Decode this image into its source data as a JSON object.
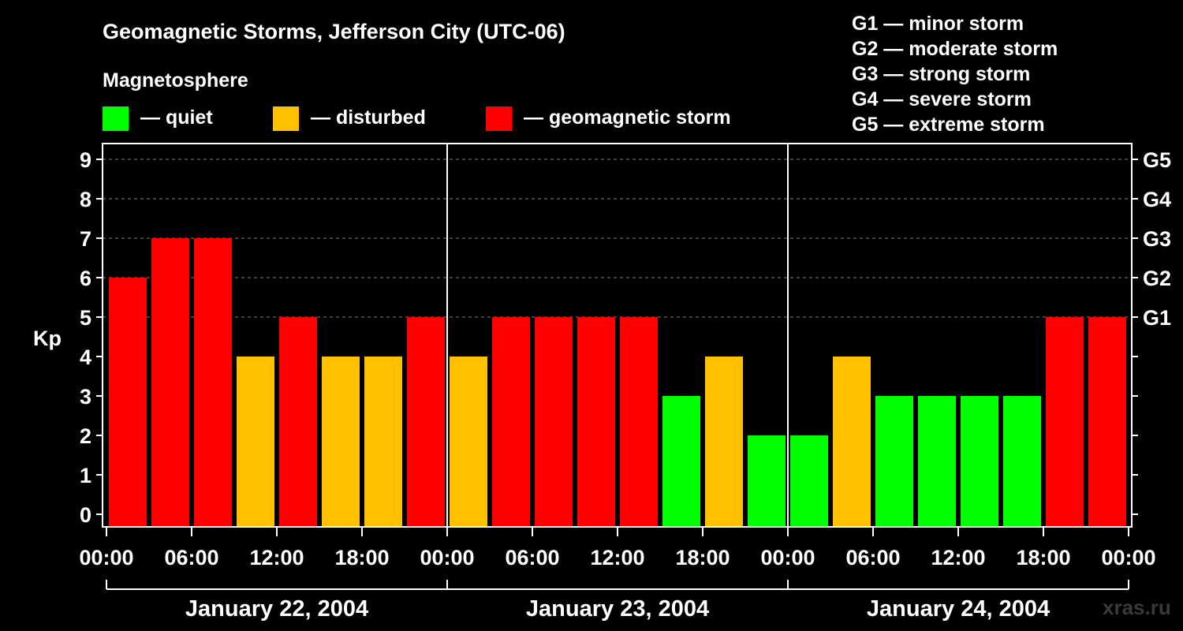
{
  "chart_data": {
    "type": "bar",
    "title": "Geomagnetic Storms, Jefferson City (UTC-06)",
    "legend_title": "Magnetosphere",
    "legend": [
      {
        "label": "— quiet",
        "color": "#00ff00"
      },
      {
        "label": "— disturbed",
        "color": "#ffc000"
      },
      {
        "label": "— geomagnetic storm",
        "color": "#ff0000"
      }
    ],
    "storm_scale": [
      "G1 — minor storm",
      "G2 — moderate storm",
      "G3 — strong storm",
      "G4 — severe storm",
      "G5 — extreme storm"
    ],
    "ylabel": "Kp",
    "ylim": [
      0,
      9
    ],
    "yticks": [
      "0",
      "1",
      "2",
      "3",
      "4",
      "5",
      "6",
      "7",
      "8",
      "9"
    ],
    "right_ticks": [
      {
        "value": 5,
        "label": "G1"
      },
      {
        "value": 6,
        "label": "G2"
      },
      {
        "value": 7,
        "label": "G3"
      },
      {
        "value": 8,
        "label": "G4"
      },
      {
        "value": 9,
        "label": "G5"
      }
    ],
    "xticks": [
      "00:00",
      "06:00",
      "12:00",
      "18:00",
      "00:00",
      "06:00",
      "12:00",
      "18:00",
      "00:00",
      "06:00",
      "12:00",
      "18:00",
      "00:00"
    ],
    "days": [
      "January 22, 2004",
      "January 23, 2004",
      "January 24, 2004"
    ],
    "bars_per_day": 8,
    "values": [
      6,
      7,
      7,
      4,
      5,
      4,
      4,
      5,
      4,
      5,
      5,
      5,
      5,
      3,
      4,
      2,
      2,
      4,
      3,
      3,
      3,
      3,
      5,
      5
    ],
    "thresholds": {
      "disturbed": 4,
      "storm": 5
    },
    "colors": {
      "quiet": "#00ff00",
      "disturbed": "#ffc000",
      "storm": "#ff0000"
    }
  },
  "watermark": "xras.ru"
}
